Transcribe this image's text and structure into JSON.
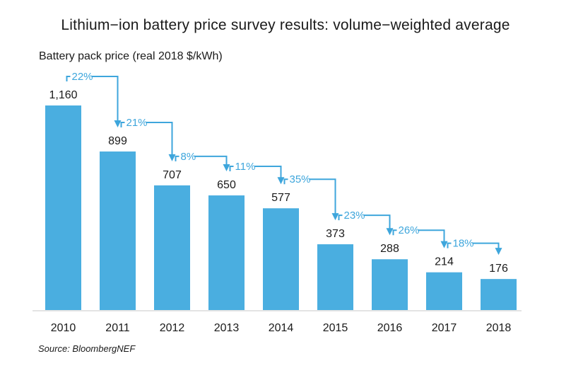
{
  "chart_data": {
    "type": "bar",
    "title": "Lithium−ion battery price survey results: volume−weighted average",
    "ylabel": "Battery pack price (real 2018 $/kWh)",
    "xlabel": "",
    "categories": [
      "2010",
      "2011",
      "2012",
      "2013",
      "2014",
      "2015",
      "2016",
      "2017",
      "2018"
    ],
    "values": [
      1160,
      899,
      707,
      650,
      577,
      373,
      288,
      214,
      176
    ],
    "value_labels": [
      "1,160",
      "899",
      "707",
      "650",
      "577",
      "373",
      "288",
      "214",
      "176"
    ],
    "annotations": [
      {
        "from": "2010",
        "to": "2011",
        "label": "22%"
      },
      {
        "from": "2011",
        "to": "2012",
        "label": "21%"
      },
      {
        "from": "2012",
        "to": "2013",
        "label": "8%"
      },
      {
        "from": "2013",
        "to": "2014",
        "label": "11%"
      },
      {
        "from": "2014",
        "to": "2015",
        "label": "35%"
      },
      {
        "from": "2015",
        "to": "2016",
        "label": "23%"
      },
      {
        "from": "2016",
        "to": "2017",
        "label": "26%"
      },
      {
        "from": "2017",
        "to": "2018",
        "label": "18%"
      }
    ],
    "ylim": [
      0,
      1160
    ],
    "grid": false,
    "bar_color": "#4aaee0",
    "annotation_color": "#3ea6dc",
    "source": "Source: BloombergNEF"
  }
}
